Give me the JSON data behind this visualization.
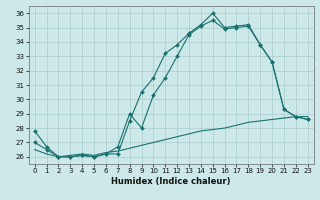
{
  "xlabel": "Humidex (Indice chaleur)",
  "bg_color": "#cce8e8",
  "grid_color": "#aacccc",
  "line_color": "#1a7070",
  "xlim": [
    -0.5,
    23.5
  ],
  "ylim": [
    25.5,
    36.5
  ],
  "yticks": [
    26,
    27,
    28,
    29,
    30,
    31,
    32,
    33,
    34,
    35,
    36
  ],
  "xticks": [
    0,
    1,
    2,
    3,
    4,
    5,
    6,
    7,
    8,
    9,
    10,
    11,
    12,
    13,
    14,
    15,
    16,
    17,
    18,
    19,
    20,
    21,
    22,
    23
  ],
  "line1_x": [
    0,
    1,
    2,
    3,
    4,
    5,
    6,
    7,
    8,
    9,
    10,
    11,
    12,
    13,
    14,
    15,
    16,
    17,
    18,
    19,
    20,
    21,
    22,
    23
  ],
  "line1_y": [
    27.8,
    26.7,
    26.0,
    26.0,
    26.1,
    26.0,
    26.2,
    26.2,
    28.5,
    30.5,
    31.5,
    33.2,
    33.8,
    34.6,
    35.2,
    36.0,
    35.0,
    35.1,
    35.2,
    33.8,
    32.6,
    29.3,
    28.8,
    28.6
  ],
  "line2_x": [
    0,
    1,
    2,
    3,
    4,
    5,
    6,
    7,
    8,
    9,
    10,
    11,
    12,
    13,
    14,
    15,
    16,
    17,
    18,
    19,
    20,
    21,
    22,
    23
  ],
  "line2_y": [
    27.0,
    26.5,
    26.0,
    26.0,
    26.1,
    26.0,
    26.2,
    26.7,
    29.0,
    28.0,
    30.3,
    31.5,
    33.0,
    34.5,
    35.1,
    35.5,
    34.9,
    35.0,
    35.1,
    33.8,
    32.6,
    29.3,
    28.8,
    28.6
  ],
  "line3_x": [
    0,
    1,
    2,
    3,
    4,
    5,
    6,
    7,
    8,
    9,
    10,
    11,
    12,
    13,
    14,
    15,
    16,
    17,
    18,
    19,
    20,
    21,
    22,
    23
  ],
  "line3_y": [
    26.5,
    26.2,
    26.0,
    26.1,
    26.2,
    26.1,
    26.3,
    26.4,
    26.6,
    26.8,
    27.0,
    27.2,
    27.4,
    27.6,
    27.8,
    27.9,
    28.0,
    28.2,
    28.4,
    28.5,
    28.6,
    28.7,
    28.8,
    28.8
  ]
}
